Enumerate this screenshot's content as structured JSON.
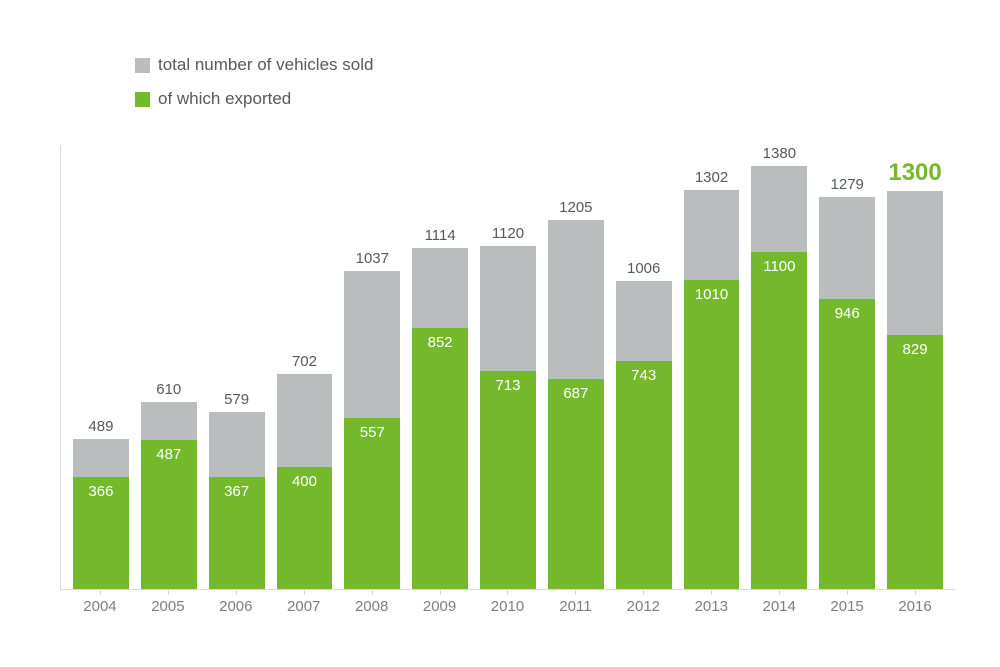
{
  "chart": {
    "type": "stacked-bar",
    "background_color": "#ffffff",
    "axis_color": "#d8dada",
    "y_max": 1450,
    "total_label_color": "#555a5a",
    "total_label_fontsize": 15,
    "highlight_label_color": "#74b92c",
    "highlight_label_fontsize": 24,
    "export_label_color": "#ffffff",
    "export_label_fontsize": 15,
    "x_tick_color": "#7a7f7f",
    "x_tick_fontsize": 15,
    "legend_color": "#555a5a",
    "legend_fontsize": 17,
    "legend": [
      {
        "label": "total number of vehicles sold",
        "color": "#babdbd"
      },
      {
        "label": "of which exported",
        "color": "#74b92c"
      }
    ],
    "series_colors": {
      "total_remainder": "#babdbd",
      "exported": "#74b92c"
    },
    "years": [
      "2004",
      "2005",
      "2006",
      "2007",
      "2008",
      "2009",
      "2010",
      "2011",
      "2012",
      "2013",
      "2014",
      "2015",
      "2016"
    ],
    "data": [
      {
        "year": "2004",
        "total": 489,
        "exported": 366,
        "highlight": false
      },
      {
        "year": "2005",
        "total": 610,
        "exported": 487,
        "highlight": false
      },
      {
        "year": "2006",
        "total": 579,
        "exported": 367,
        "highlight": false
      },
      {
        "year": "2007",
        "total": 702,
        "exported": 400,
        "highlight": false
      },
      {
        "year": "2008",
        "total": 1037,
        "exported": 557,
        "highlight": false
      },
      {
        "year": "2009",
        "total": 1114,
        "exported": 852,
        "highlight": false
      },
      {
        "year": "2010",
        "total": 1120,
        "exported": 713,
        "highlight": false
      },
      {
        "year": "2011",
        "total": 1205,
        "exported": 687,
        "highlight": false
      },
      {
        "year": "2012",
        "total": 1006,
        "exported": 743,
        "highlight": false
      },
      {
        "year": "2013",
        "total": 1302,
        "exported": 1010,
        "highlight": false
      },
      {
        "year": "2014",
        "total": 1380,
        "exported": 1100,
        "highlight": false
      },
      {
        "year": "2015",
        "total": 1279,
        "exported": 946,
        "highlight": false
      },
      {
        "year": "2016",
        "total": 1300,
        "exported": 829,
        "highlight": true
      }
    ]
  }
}
